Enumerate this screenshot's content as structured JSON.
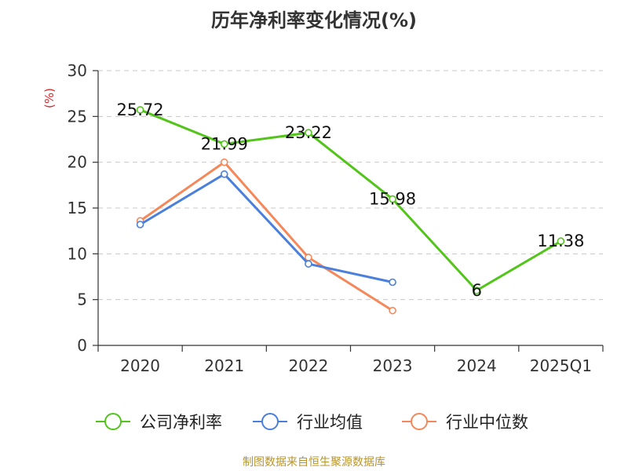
{
  "chart_data": {
    "type": "line",
    "title": "历年净利率变化情况(%)",
    "ylabel": "(%)",
    "xlabel": "",
    "categories": [
      "2020",
      "2021",
      "2022",
      "2023",
      "2024",
      "2025Q1"
    ],
    "ylim": [
      0,
      30
    ],
    "yticks": [
      0,
      5,
      10,
      15,
      20,
      25,
      30
    ],
    "grid": true,
    "legend_position": "bottom",
    "series": [
      {
        "name": "公司净利率",
        "color": "#52c41a",
        "values": [
          25.72,
          21.99,
          23.22,
          15.98,
          6,
          11.38
        ],
        "labels": [
          "25.72",
          "21.99",
          "23.22",
          "15.98",
          "6",
          "11.38"
        ],
        "show_labels": true,
        "connect_gaps": false
      },
      {
        "name": "行业均值",
        "color": "#4a7fdb",
        "values": [
          13.2,
          18.7,
          8.9,
          6.9,
          null,
          null
        ],
        "show_labels": false
      },
      {
        "name": "行业中位数",
        "color": "#f5885a",
        "values": [
          13.6,
          20.0,
          9.6,
          3.8,
          null,
          null
        ],
        "show_labels": false
      }
    ]
  },
  "source": "制图数据来自恒生聚源数据库"
}
